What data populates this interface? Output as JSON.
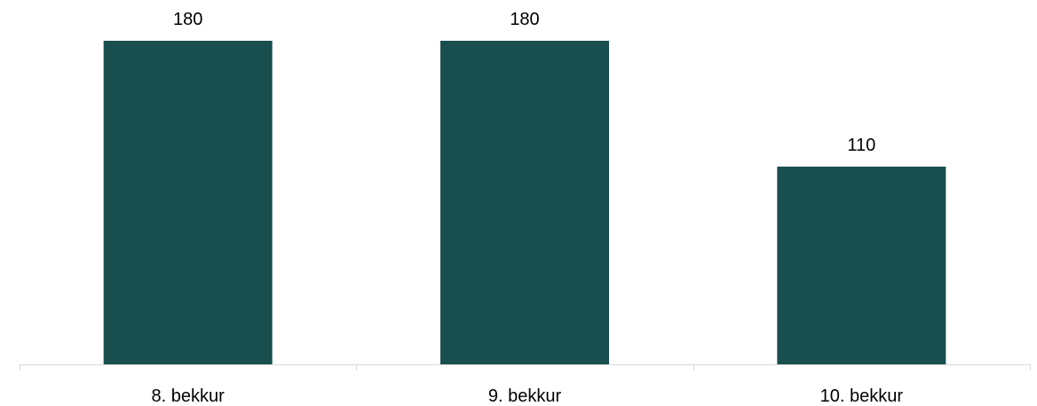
{
  "chart_data": {
    "type": "bar",
    "categories": [
      "8. bekkur",
      "9. bekkur",
      "10. bekkur"
    ],
    "values": [
      180,
      180,
      110
    ],
    "data_labels": [
      "180",
      "180",
      "110"
    ],
    "title": "",
    "xlabel": "",
    "ylabel": "",
    "ylim": [
      0,
      180
    ],
    "grid": false,
    "legend": "none",
    "colors": {
      "bar": "#184f4e",
      "axis": "#d9d9d9",
      "text": "#000000"
    }
  }
}
